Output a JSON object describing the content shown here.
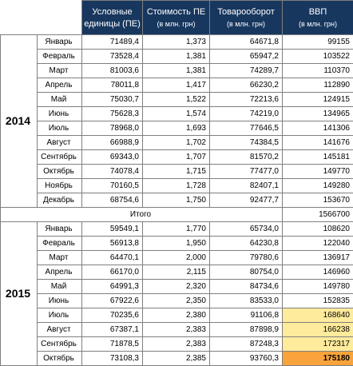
{
  "headers": {
    "col1": {
      "line1": "Условные",
      "line2": "единицы (ПЕ)"
    },
    "col2": {
      "line1": "Стоимость ПЕ",
      "line2": "(в млн. грн)"
    },
    "col3": {
      "line1": "Товарооборот",
      "line2": "(в млн. грн)"
    },
    "col4": {
      "line1": "ВВП",
      "line2": "(в млн. грн)"
    }
  },
  "year2014": {
    "label": "2014",
    "rows": [
      {
        "month": "Январь",
        "units": "71489,4",
        "cost": "1,373",
        "turnover": "64671,8",
        "gdp": "99155"
      },
      {
        "month": "Февраль",
        "units": "73528,4",
        "cost": "1,381",
        "turnover": "65947,2",
        "gdp": "103522"
      },
      {
        "month": "Март",
        "units": "81003,6",
        "cost": "1,381",
        "turnover": "74289,7",
        "gdp": "110370"
      },
      {
        "month": "Апрель",
        "units": "78011,8",
        "cost": "1,417",
        "turnover": "66230,2",
        "gdp": "112890"
      },
      {
        "month": "Май",
        "units": "75030,7",
        "cost": "1,522",
        "turnover": "72213,6",
        "gdp": "124915"
      },
      {
        "month": "Июнь",
        "units": "75628,3",
        "cost": "1,574",
        "turnover": "74219,0",
        "gdp": "134965"
      },
      {
        "month": "Июль",
        "units": "78968,0",
        "cost": "1,693",
        "turnover": "77646,5",
        "gdp": "141306"
      },
      {
        "month": "Август",
        "units": "66988,9",
        "cost": "1,702",
        "turnover": "74384,5",
        "gdp": "141676"
      },
      {
        "month": "Сентябрь",
        "units": "69343,0",
        "cost": "1,707",
        "turnover": "81570,2",
        "gdp": "145181"
      },
      {
        "month": "Октябрь",
        "units": "74078,4",
        "cost": "1,715",
        "turnover": "77477,0",
        "gdp": "149770"
      },
      {
        "month": "Ноябрь",
        "units": "70160,5",
        "cost": "1,728",
        "turnover": "82407,1",
        "gdp": "149280"
      },
      {
        "month": "Декабрь",
        "units": "68754,6",
        "cost": "1,750",
        "turnover": "92477,7",
        "gdp": "153670"
      }
    ],
    "total_label": "Итого",
    "total_value": "1566700"
  },
  "year2015": {
    "label": "2015",
    "rows": [
      {
        "month": "Январь",
        "units": "59549,1",
        "cost": "1,770",
        "turnover": "65734,0",
        "gdp": "108620"
      },
      {
        "month": "Февраль",
        "units": "56913,8",
        "cost": "1,950",
        "turnover": "64230,8",
        "gdp": "122040"
      },
      {
        "month": "Март",
        "units": "64470,1",
        "cost": "2,000",
        "turnover": "79780,6",
        "gdp": "136917"
      },
      {
        "month": "Апрель",
        "units": "66170,0",
        "cost": "2,115",
        "turnover": "80754,0",
        "gdp": "146960"
      },
      {
        "month": "Май",
        "units": "64991,3",
        "cost": "2,320",
        "turnover": "84734,6",
        "gdp": "149780"
      },
      {
        "month": "Июнь",
        "units": "67922,6",
        "cost": "2,350",
        "turnover": "83533,0",
        "gdp": "152835"
      },
      {
        "month": "Июль",
        "units": "70235,6",
        "cost": "2,380",
        "turnover": "91106,8",
        "gdp": "168640"
      },
      {
        "month": "Август",
        "units": "67387,1",
        "cost": "2,383",
        "turnover": "87898,9",
        "gdp": "166238"
      },
      {
        "month": "Сентябрь",
        "units": "71878,5",
        "cost": "2,383",
        "turnover": "87248,3",
        "gdp": "172317"
      },
      {
        "month": "Октябрь",
        "units": "73108,3",
        "cost": "2,385",
        "turnover": "93760,3",
        "gdp": "175180"
      }
    ]
  },
  "colors": {
    "header_bg": "#17375e",
    "highlight_yellow": "#ffeb9c",
    "highlight_orange": "#f8a33b"
  }
}
